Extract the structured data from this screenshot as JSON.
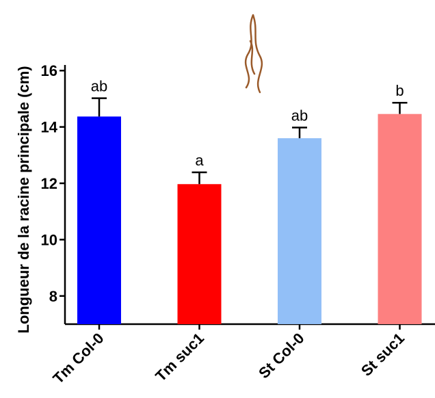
{
  "chart_data": {
    "type": "bar",
    "y_label": "Longueur de la racine principale (cm)",
    "categories": [
      "Tm Col-0",
      "Tm suc1",
      "St Col-0",
      "St suc1"
    ],
    "values": [
      14.37,
      11.97,
      13.6,
      14.46
    ],
    "errors": [
      0.65,
      0.42,
      0.38,
      0.4
    ],
    "annotations": [
      "ab",
      "a",
      "ab",
      "b"
    ],
    "colors": [
      "#0000ff",
      "#ff0000",
      "#92bff7",
      "#fd8080"
    ],
    "ylim": [
      7,
      16.2
    ],
    "yticks": [
      8,
      10,
      12,
      14,
      16
    ],
    "grid": false
  }
}
